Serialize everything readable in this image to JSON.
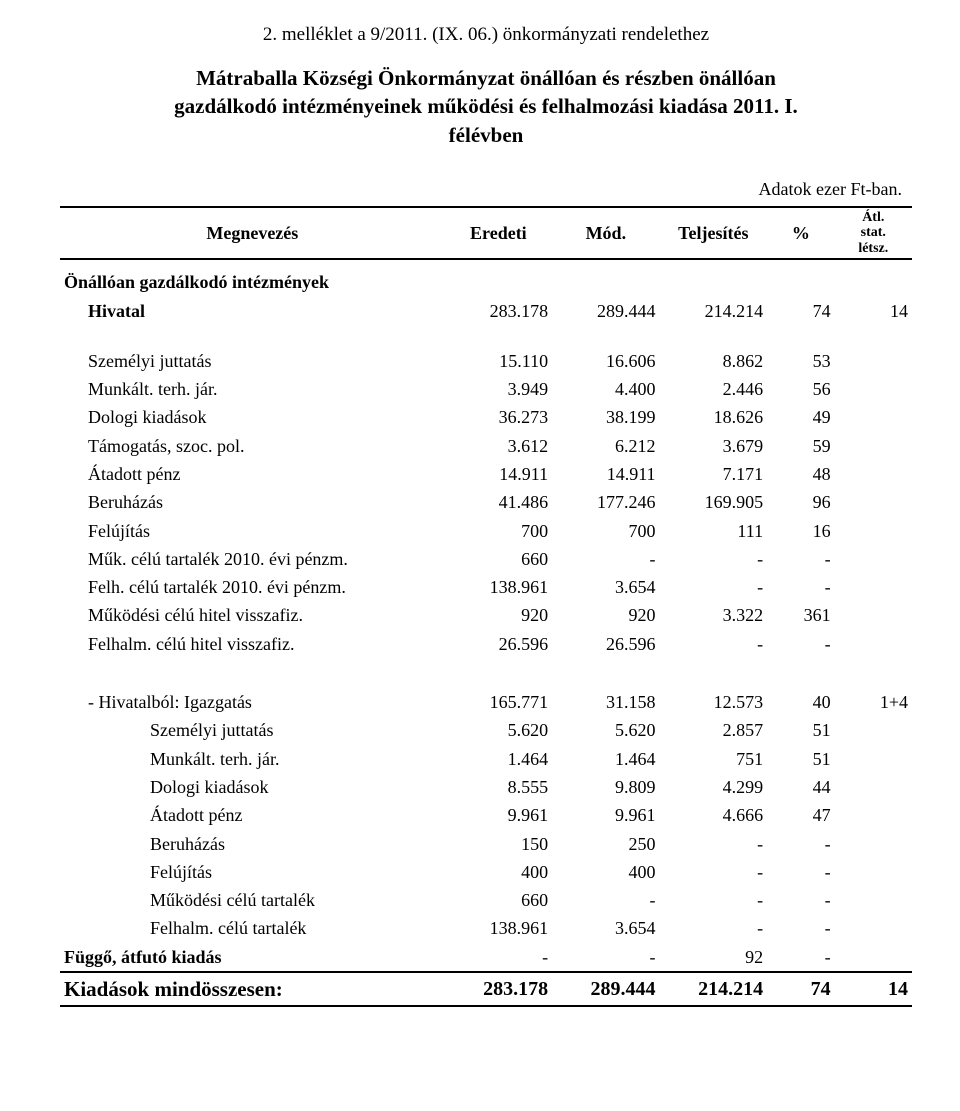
{
  "annex_line": "2. melléklet a 9/2011. (IX. 06.) önkormányzati rendelethez",
  "title_lines": [
    "Mátraballa Községi Önkormányzat önállóan és részben önállóan",
    "gazdálkodó intézményeinek működési és felhalmozási kiadása 2011. I.",
    "félévben"
  ],
  "source_note": "Adatok ezer Ft-ban.",
  "columns": {
    "label": "Megnevezés",
    "c1": "Eredeti",
    "c2": "Mód.",
    "c3": "Teljesítés",
    "c4": "%",
    "c5_lines": [
      "Átl.",
      "stat.",
      "létsz."
    ]
  },
  "section1": {
    "heading": "Önállóan gazdálkodó intézmények",
    "total": {
      "label": "Hivatal",
      "v": [
        "283.178",
        "289.444",
        "214.214",
        "74",
        "14"
      ]
    },
    "rows": [
      {
        "label": "Személyi juttatás",
        "v": [
          "15.110",
          "16.606",
          "8.862",
          "53",
          ""
        ]
      },
      {
        "label": "Munkált. terh. jár.",
        "v": [
          "3.949",
          "4.400",
          "2.446",
          "56",
          ""
        ]
      },
      {
        "label": "Dologi kiadások",
        "v": [
          "36.273",
          "38.199",
          "18.626",
          "49",
          ""
        ]
      },
      {
        "label": "Támogatás, szoc. pol.",
        "v": [
          "3.612",
          "6.212",
          "3.679",
          "59",
          ""
        ]
      },
      {
        "label": "Átadott pénz",
        "v": [
          "14.911",
          "14.911",
          "7.171",
          "48",
          ""
        ]
      },
      {
        "label": "Beruházás",
        "v": [
          "41.486",
          "177.246",
          "169.905",
          "96",
          ""
        ]
      },
      {
        "label": "Felújítás",
        "v": [
          "700",
          "700",
          "111",
          "16",
          ""
        ]
      },
      {
        "label": "Műk. célú tartalék 2010. évi pénzm.",
        "v": [
          "660",
          "-",
          "-",
          "-",
          ""
        ]
      },
      {
        "label": "Felh. célú tartalék 2010. évi pénzm.",
        "v": [
          "138.961",
          "3.654",
          "-",
          "-",
          ""
        ]
      },
      {
        "label": "Működési célú hitel visszafiz.",
        "v": [
          "920",
          "920",
          "3.322",
          "361",
          ""
        ]
      },
      {
        "label": "Felhalm. célú hitel visszafiz.",
        "v": [
          "26.596",
          "26.596",
          "-",
          "-",
          ""
        ]
      }
    ]
  },
  "section2": {
    "total": {
      "label": "- Hivatalból: Igazgatás",
      "v": [
        "165.771",
        "31.158",
        "12.573",
        "40",
        "1+4"
      ]
    },
    "rows": [
      {
        "label": "Személyi juttatás",
        "v": [
          "5.620",
          "5.620",
          "2.857",
          "51",
          ""
        ]
      },
      {
        "label": "Munkált. terh. jár.",
        "v": [
          "1.464",
          "1.464",
          "751",
          "51",
          ""
        ]
      },
      {
        "label": "Dologi kiadások",
        "v": [
          "8.555",
          "9.809",
          "4.299",
          "44",
          ""
        ]
      },
      {
        "label": "Átadott pénz",
        "v": [
          "9.961",
          "9.961",
          "4.666",
          "47",
          ""
        ]
      },
      {
        "label": "Beruházás",
        "v": [
          "150",
          "250",
          "-",
          "-",
          ""
        ]
      },
      {
        "label": "Felújítás",
        "v": [
          "400",
          "400",
          "-",
          "-",
          ""
        ]
      },
      {
        "label": "Működési célú tartalék",
        "v": [
          "660",
          "-",
          "-",
          "-",
          ""
        ]
      },
      {
        "label": "Felhalm. célú tartalék",
        "v": [
          "138.961",
          "3.654",
          "-",
          "-",
          ""
        ]
      }
    ]
  },
  "transit_row": {
    "label": "Függő, átfutó kiadás",
    "v": [
      "-",
      "-",
      "92",
      "-",
      ""
    ]
  },
  "grand_total": {
    "label": "Kiadások mindösszesen:",
    "v": [
      "283.178",
      "289.444",
      "214.214",
      "74",
      "14"
    ]
  }
}
